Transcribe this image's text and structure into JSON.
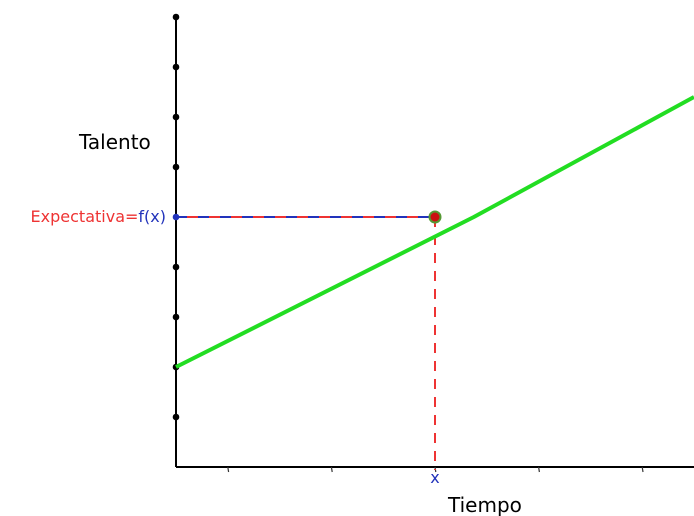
{
  "colors": {
    "axis": "#000000",
    "line": "#22dd22",
    "point_fill": "#cc1111",
    "point_stroke": "#559933",
    "vertical_guide": "#ee3333",
    "horizontal_guide_a": "#ee3333",
    "horizontal_guide_b": "#2233bb",
    "label_expectativa": "#ee3333",
    "label_fx": "#2233bb",
    "label_x": "#2233bb",
    "y_tick_dot": "#000000",
    "y_origin_dot": "#2233bb"
  },
  "chart_data": {
    "type": "line",
    "title": "",
    "xlabel": "Tiempo",
    "ylabel": "Talento",
    "grid": false,
    "legend": "none",
    "xlim": [
      0,
      10
    ],
    "ylim": [
      0,
      9
    ],
    "x_tick_values": [
      1,
      3,
      5,
      7,
      9
    ],
    "y_tick_values": [
      1,
      2,
      3,
      4,
      5,
      6,
      7,
      8,
      9
    ],
    "series": [
      {
        "x": [
          0,
          5.75,
          10
        ],
        "y": [
          2,
          5,
          7.4
        ]
      }
    ],
    "highlighted_point": {
      "x": 5,
      "y": 5,
      "x_label": "x",
      "y_label_prefix": "Expectativa=",
      "y_label_value": "f(x)"
    }
  }
}
